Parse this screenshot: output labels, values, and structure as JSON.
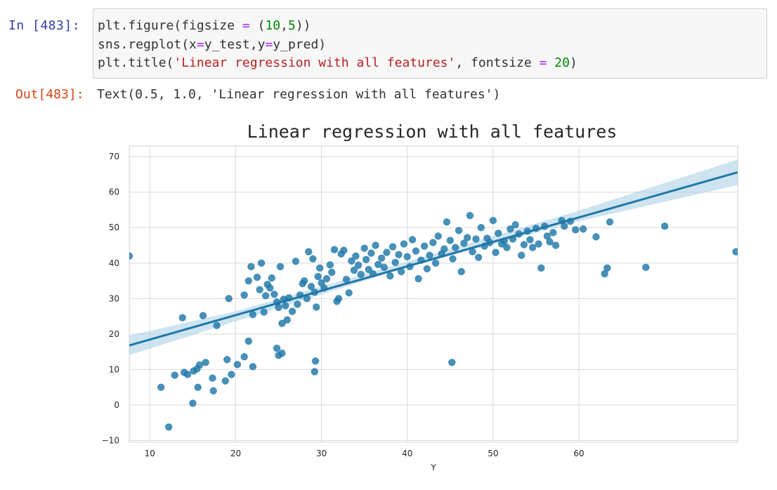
{
  "input_cell": {
    "prompt": "In  [483]:",
    "code_lines": [
      [
        {
          "t": "plt.figure(figsize ",
          "c": ""
        },
        {
          "t": "=",
          "c": "op"
        },
        {
          "t": " (",
          "c": ""
        },
        {
          "t": "10",
          "c": "num"
        },
        {
          "t": ",",
          "c": ""
        },
        {
          "t": "5",
          "c": "num"
        },
        {
          "t": "))",
          "c": ""
        }
      ],
      [
        {
          "t": "sns.regplot(x",
          "c": ""
        },
        {
          "t": "=",
          "c": "op"
        },
        {
          "t": "y_test,y",
          "c": ""
        },
        {
          "t": "=",
          "c": "op"
        },
        {
          "t": "y_pred)",
          "c": ""
        }
      ],
      [
        {
          "t": "plt.title(",
          "c": ""
        },
        {
          "t": "'Linear regression with all features'",
          "c": "str"
        },
        {
          "t": ", fontsize ",
          "c": ""
        },
        {
          "t": "=",
          "c": "op"
        },
        {
          "t": " ",
          "c": ""
        },
        {
          "t": "20",
          "c": "num"
        },
        {
          "t": ")",
          "c": ""
        }
      ]
    ]
  },
  "output_cell": {
    "prompt": "Out[483]:",
    "text": "Text(0.5, 1.0, 'Linear regression with all features')"
  },
  "chart_data": {
    "type": "scatter",
    "title": "Linear regression with all features",
    "xlabel": "Y",
    "ylabel": "",
    "xlim": [
      7.6,
      78.5
    ],
    "ylim": [
      -10.5,
      73
    ],
    "xticks": [
      10,
      20,
      30,
      40,
      50,
      60
    ],
    "yticks": [
      -10,
      0,
      10,
      20,
      30,
      40,
      50,
      60,
      70
    ],
    "grid": true,
    "point_color": "#1f77a8",
    "line_color": "#1f77a8",
    "band_color": "#a6cde3",
    "regression_line": {
      "x": [
        7.6,
        78.5
      ],
      "y": [
        16.8,
        65.6
      ]
    },
    "confidence_band": {
      "x": [
        7.6,
        20,
        40,
        60,
        78.5
      ],
      "upper": [
        19.6,
        26.4,
        40.4,
        54.8,
        69.2
      ],
      "lower": [
        14.0,
        23.6,
        38.8,
        51.8,
        62.0
      ]
    },
    "points": [
      [
        7.6,
        42
      ],
      [
        11.3,
        5
      ],
      [
        12.2,
        -6.2
      ],
      [
        12.9,
        8.4
      ],
      [
        14.0,
        9.2
      ],
      [
        14.4,
        8.6
      ],
      [
        15.0,
        0.5
      ],
      [
        15.1,
        9.6
      ],
      [
        15.5,
        10.2
      ],
      [
        15.6,
        5
      ],
      [
        15.8,
        11.3
      ],
      [
        16.5,
        12
      ],
      [
        17.3,
        7.6
      ],
      [
        17.4,
        4
      ],
      [
        18.8,
        6.8
      ],
      [
        19.0,
        12.8
      ],
      [
        19.5,
        8.6
      ],
      [
        20.2,
        11.4
      ],
      [
        21.0,
        13.6
      ],
      [
        21.5,
        18
      ],
      [
        22.0,
        10.8
      ],
      [
        29.3,
        12.4
      ],
      [
        29.2,
        9.4
      ],
      [
        24.8,
        16
      ],
      [
        25.0,
        14
      ],
      [
        25.4,
        14.6
      ],
      [
        45.2,
        12
      ],
      [
        13.8,
        24.6
      ],
      [
        16.2,
        25.2
      ],
      [
        17.8,
        22.4
      ],
      [
        19.2,
        30
      ],
      [
        21.0,
        31
      ],
      [
        21.5,
        35
      ],
      [
        21.8,
        39
      ],
      [
        22.0,
        25.5
      ],
      [
        22.5,
        36
      ],
      [
        22.8,
        32.5
      ],
      [
        23.0,
        40
      ],
      [
        23.3,
        26.2
      ],
      [
        23.5,
        30.8
      ],
      [
        23.7,
        34
      ],
      [
        24.0,
        33
      ],
      [
        24.2,
        35.8
      ],
      [
        24.5,
        31.2
      ],
      [
        24.8,
        29
      ],
      [
        25.0,
        27.5
      ],
      [
        25.2,
        39
      ],
      [
        25.4,
        23
      ],
      [
        25.6,
        29.8
      ],
      [
        25.8,
        28
      ],
      [
        26.0,
        24
      ],
      [
        26.2,
        30.2
      ],
      [
        26.6,
        26.4
      ],
      [
        27.0,
        40.5
      ],
      [
        27.2,
        28.4
      ],
      [
        27.5,
        31
      ],
      [
        27.8,
        34.2
      ],
      [
        28.0,
        35
      ],
      [
        28.3,
        30
      ],
      [
        28.5,
        43.2
      ],
      [
        28.8,
        33.4
      ],
      [
        29.0,
        41.2
      ],
      [
        29.2,
        31.8
      ],
      [
        29.4,
        27.6
      ],
      [
        29.6,
        36.2
      ],
      [
        29.8,
        38.6
      ],
      [
        30.0,
        34.4
      ],
      [
        30.3,
        33
      ],
      [
        30.6,
        35.6
      ],
      [
        31.0,
        39.5
      ],
      [
        31.2,
        37.4
      ],
      [
        31.5,
        43.8
      ],
      [
        31.8,
        29.2
      ],
      [
        32.0,
        30
      ],
      [
        32.3,
        42.6
      ],
      [
        32.6,
        43.6
      ],
      [
        32.9,
        35.4
      ],
      [
        33.2,
        31.6
      ],
      [
        33.5,
        40.6
      ],
      [
        33.8,
        38
      ],
      [
        34.0,
        42
      ],
      [
        34.3,
        39.4
      ],
      [
        34.6,
        36.8
      ],
      [
        35.0,
        44.2
      ],
      [
        35.2,
        41
      ],
      [
        35.5,
        38.2
      ],
      [
        35.8,
        42.8
      ],
      [
        36.0,
        37
      ],
      [
        36.3,
        45
      ],
      [
        36.6,
        39.6
      ],
      [
        37.0,
        41.4
      ],
      [
        37.3,
        38.8
      ],
      [
        37.6,
        43
      ],
      [
        38.0,
        36.4
      ],
      [
        38.3,
        44.6
      ],
      [
        38.6,
        40.2
      ],
      [
        39.0,
        42.4
      ],
      [
        39.3,
        37.6
      ],
      [
        39.6,
        45.4
      ],
      [
        40.0,
        41.8
      ],
      [
        40.3,
        39
      ],
      [
        40.6,
        46.6
      ],
      [
        41.0,
        43.4
      ],
      [
        41.3,
        35.6
      ],
      [
        41.6,
        40.8
      ],
      [
        42.0,
        44.8
      ],
      [
        42.3,
        38.4
      ],
      [
        42.6,
        42.2
      ],
      [
        43.0,
        45.8
      ],
      [
        43.3,
        40
      ],
      [
        43.6,
        47.6
      ],
      [
        44.0,
        42.6
      ],
      [
        44.3,
        44
      ],
      [
        44.6,
        51.6
      ],
      [
        45.0,
        46.4
      ],
      [
        45.3,
        41.2
      ],
      [
        45.6,
        44.4
      ],
      [
        46.0,
        49.2
      ],
      [
        46.3,
        37.6
      ],
      [
        46.6,
        45.6
      ],
      [
        47.0,
        47.2
      ],
      [
        47.3,
        53.4
      ],
      [
        47.6,
        43.2
      ],
      [
        48.0,
        46.8
      ],
      [
        48.3,
        41.6
      ],
      [
        48.6,
        50
      ],
      [
        49.0,
        44.8
      ],
      [
        49.3,
        47
      ],
      [
        49.6,
        45.8
      ],
      [
        50.0,
        52
      ],
      [
        50.3,
        43
      ],
      [
        50.6,
        48.4
      ],
      [
        51.0,
        45.4
      ],
      [
        51.3,
        46.2
      ],
      [
        51.6,
        44.4
      ],
      [
        52.0,
        49.6
      ],
      [
        52.3,
        46.8
      ],
      [
        52.6,
        50.8
      ],
      [
        53.0,
        48.2
      ],
      [
        53.3,
        42.2
      ],
      [
        53.6,
        45.2
      ],
      [
        54.0,
        49
      ],
      [
        54.3,
        46.6
      ],
      [
        54.6,
        44.4
      ],
      [
        55.0,
        49.8
      ],
      [
        55.3,
        45.4
      ],
      [
        55.6,
        38.6
      ],
      [
        56.0,
        50.4
      ],
      [
        56.3,
        47.6
      ],
      [
        56.6,
        46
      ],
      [
        57.0,
        48.6
      ],
      [
        57.3,
        45
      ],
      [
        58.0,
        52
      ],
      [
        58.3,
        50.4
      ],
      [
        59.0,
        51.8
      ],
      [
        59.6,
        49.4
      ],
      [
        60.5,
        49.6
      ],
      [
        62.0,
        47.4
      ],
      [
        63.0,
        37
      ],
      [
        63.3,
        38.6
      ],
      [
        63.6,
        51.6
      ],
      [
        67.8,
        38.8
      ],
      [
        70.0,
        50.4
      ],
      [
        78.3,
        43.2
      ]
    ]
  }
}
